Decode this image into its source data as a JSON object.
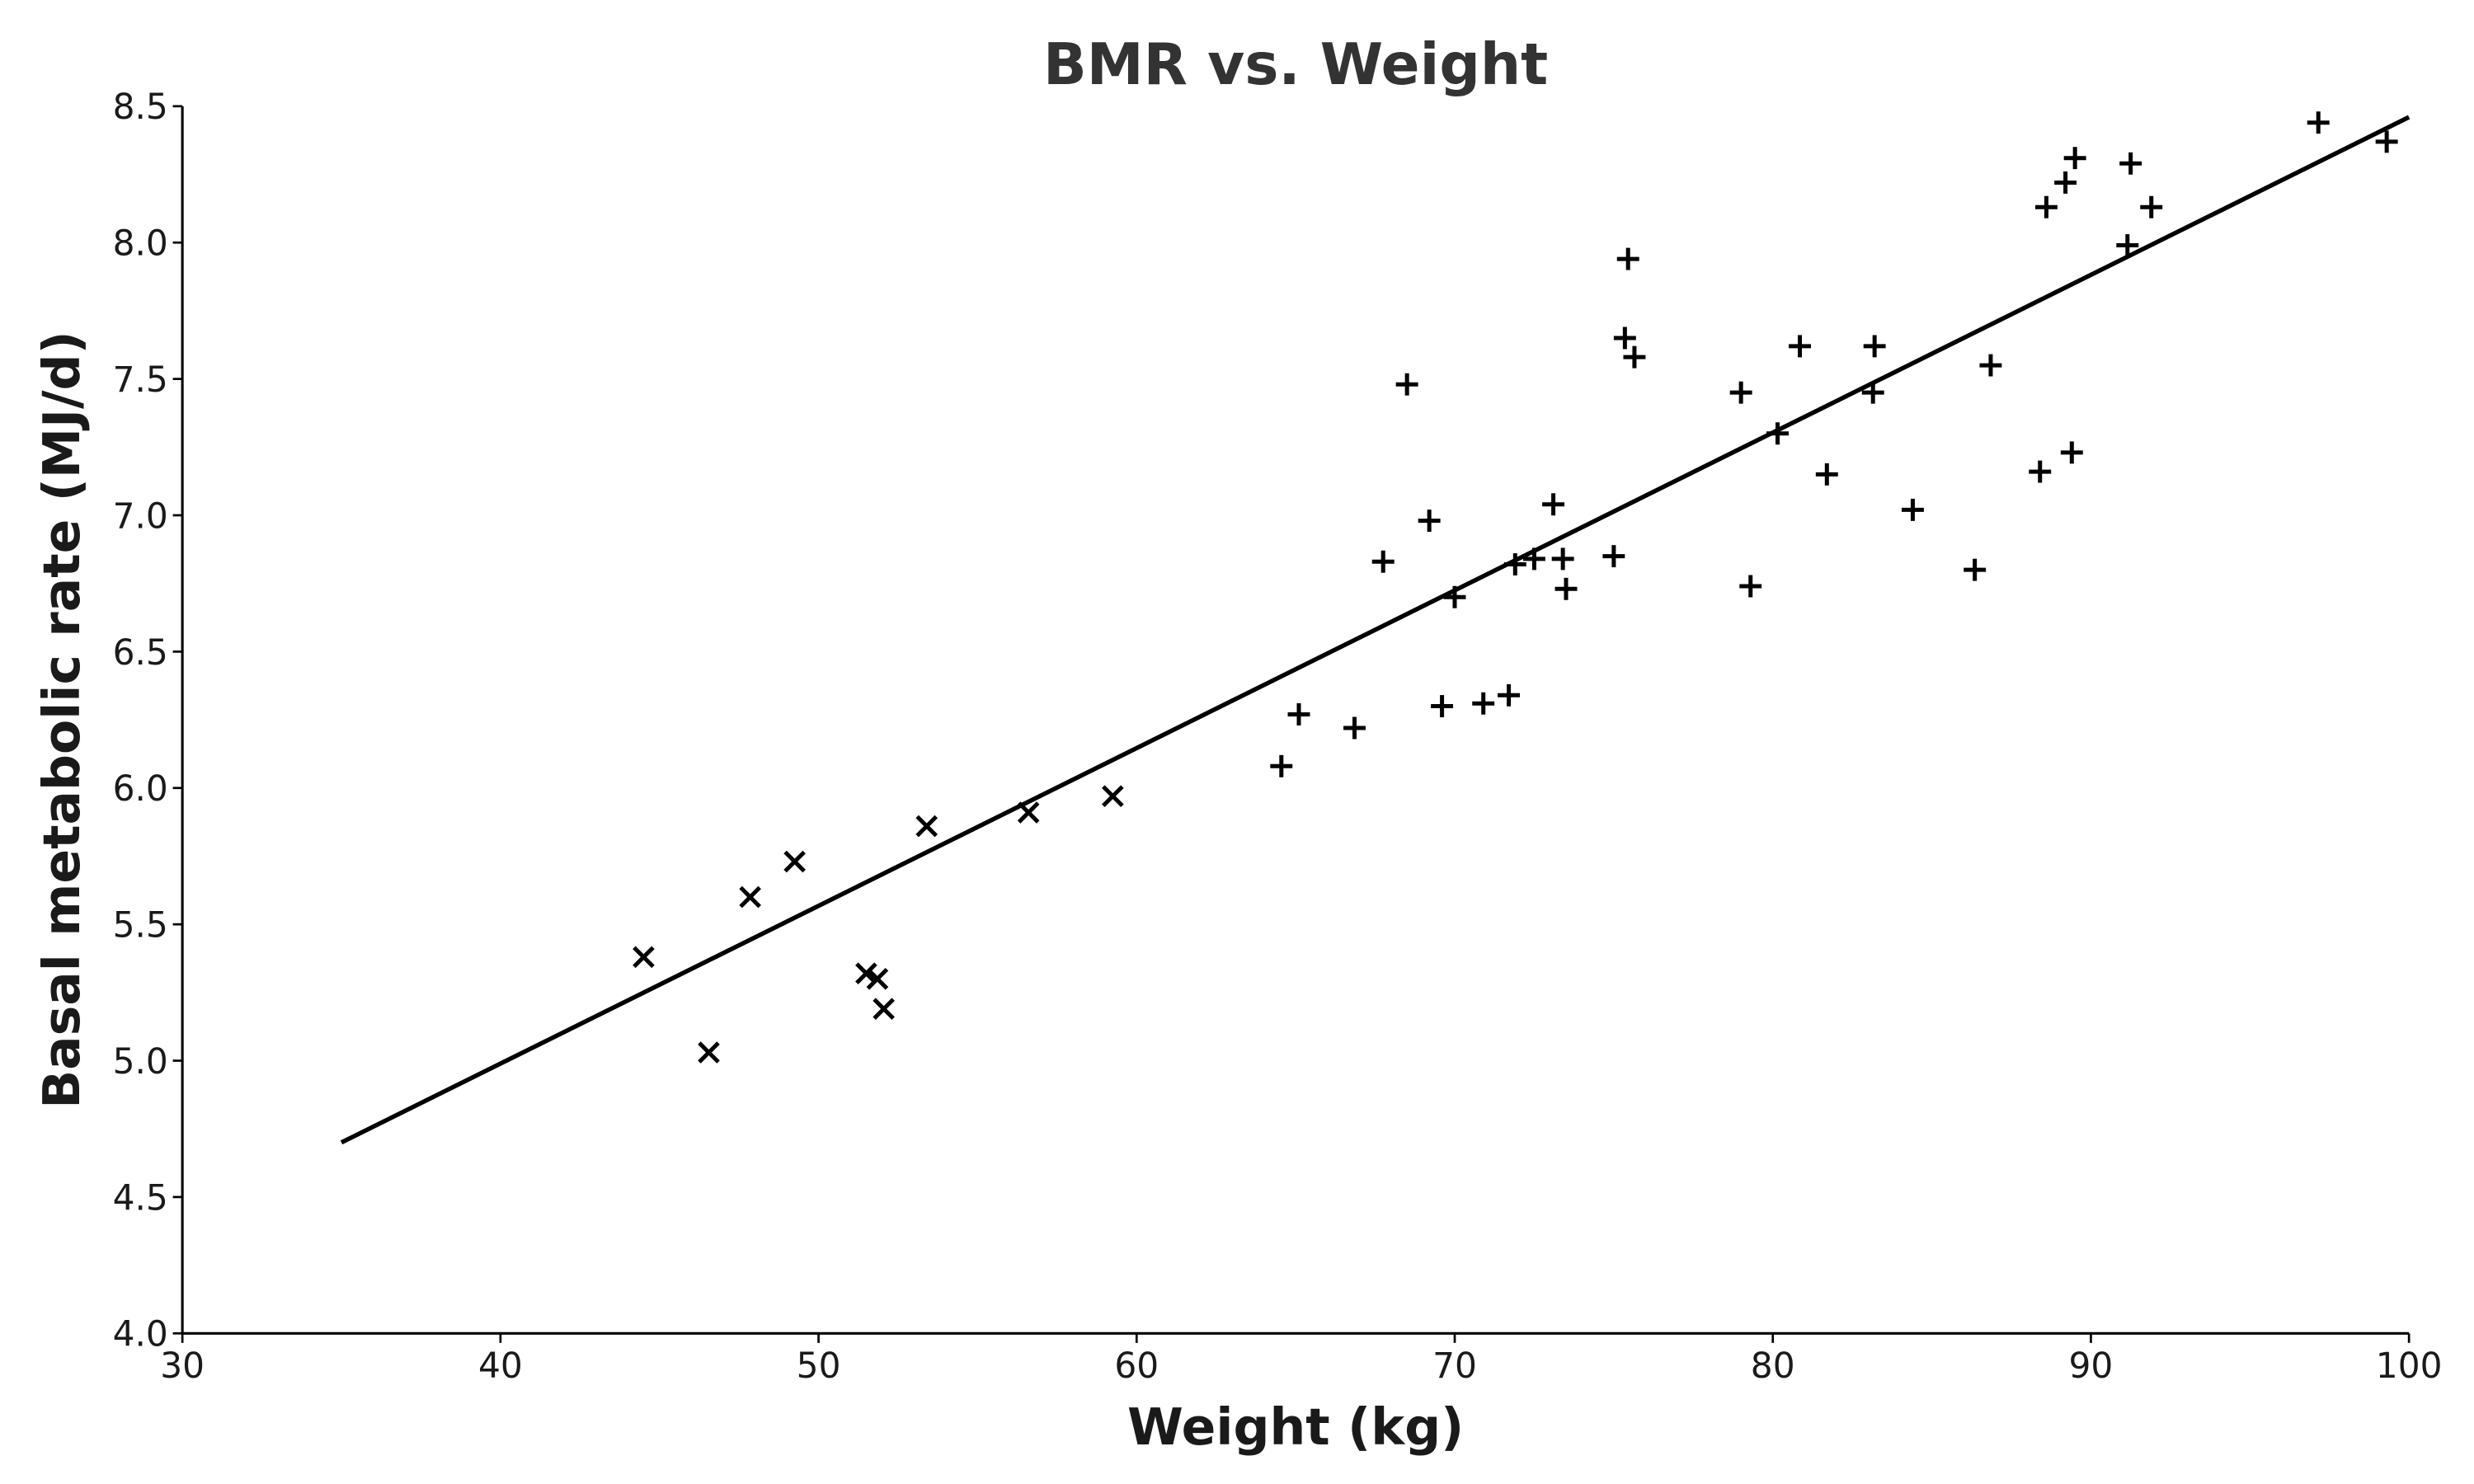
{
  "chart_data": {
    "type": "scatter",
    "title": "BMR vs. Weight",
    "xlabel": "Weight (kg)",
    "ylabel": "Basal metabolic rate (MJ/d)",
    "xlim": [
      30,
      100
    ],
    "ylim": [
      4.0,
      8.5
    ],
    "xticks": [
      "30",
      "40",
      "50",
      "60",
      "70",
      "80",
      "90",
      "100"
    ],
    "yticks": [
      "4.0",
      "4.5",
      "5.0",
      "5.5",
      "6.0",
      "6.5",
      "7.0",
      "7.5",
      "8.0",
      "8.5"
    ],
    "grid": false,
    "legend": "none",
    "colors": {
      "marker": "#000000",
      "line": "#000000",
      "title": "#333333"
    },
    "series": [
      {
        "marker": "x",
        "points": [
          [
            44.5,
            5.38
          ],
          [
            46.55,
            5.03
          ],
          [
            47.85,
            5.6
          ],
          [
            49.25,
            5.73
          ],
          [
            51.5,
            5.32
          ],
          [
            51.85,
            5.3
          ],
          [
            52.05,
            5.19
          ],
          [
            53.4,
            5.86
          ],
          [
            56.6,
            5.91
          ],
          [
            59.25,
            5.97
          ]
        ]
      },
      {
        "marker": "+",
        "points": [
          [
            64.55,
            6.08
          ],
          [
            65.1,
            6.27
          ],
          [
            66.85,
            6.22
          ],
          [
            67.75,
            6.83
          ],
          [
            68.5,
            7.48
          ],
          [
            69.2,
            6.98
          ],
          [
            69.6,
            6.3
          ],
          [
            70.0,
            6.7
          ],
          [
            70.9,
            6.31
          ],
          [
            71.7,
            6.34
          ],
          [
            71.9,
            6.82
          ],
          [
            72.5,
            6.84
          ],
          [
            73.1,
            7.04
          ],
          [
            73.4,
            6.84
          ],
          [
            73.5,
            6.73
          ],
          [
            75.0,
            6.85
          ],
          [
            75.35,
            7.65
          ],
          [
            75.45,
            7.94
          ],
          [
            75.65,
            7.58
          ],
          [
            79.0,
            7.45
          ],
          [
            79.3,
            6.74
          ],
          [
            80.15,
            7.3
          ],
          [
            80.85,
            7.62
          ],
          [
            81.7,
            7.15
          ],
          [
            83.2,
            7.62
          ],
          [
            83.15,
            7.45
          ],
          [
            84.4,
            7.02
          ],
          [
            86.35,
            6.8
          ],
          [
            86.85,
            7.55
          ],
          [
            88.4,
            7.16
          ],
          [
            88.6,
            8.13
          ],
          [
            89.2,
            8.22
          ],
          [
            89.4,
            7.23
          ],
          [
            89.5,
            8.31
          ],
          [
            91.15,
            7.99
          ],
          [
            91.25,
            8.29
          ],
          [
            91.9,
            8.13
          ],
          [
            97.15,
            8.44
          ],
          [
            99.3,
            8.37
          ]
        ]
      }
    ],
    "fit_line": {
      "x": [
        35,
        100
      ],
      "y": [
        4.7,
        8.46
      ]
    }
  }
}
